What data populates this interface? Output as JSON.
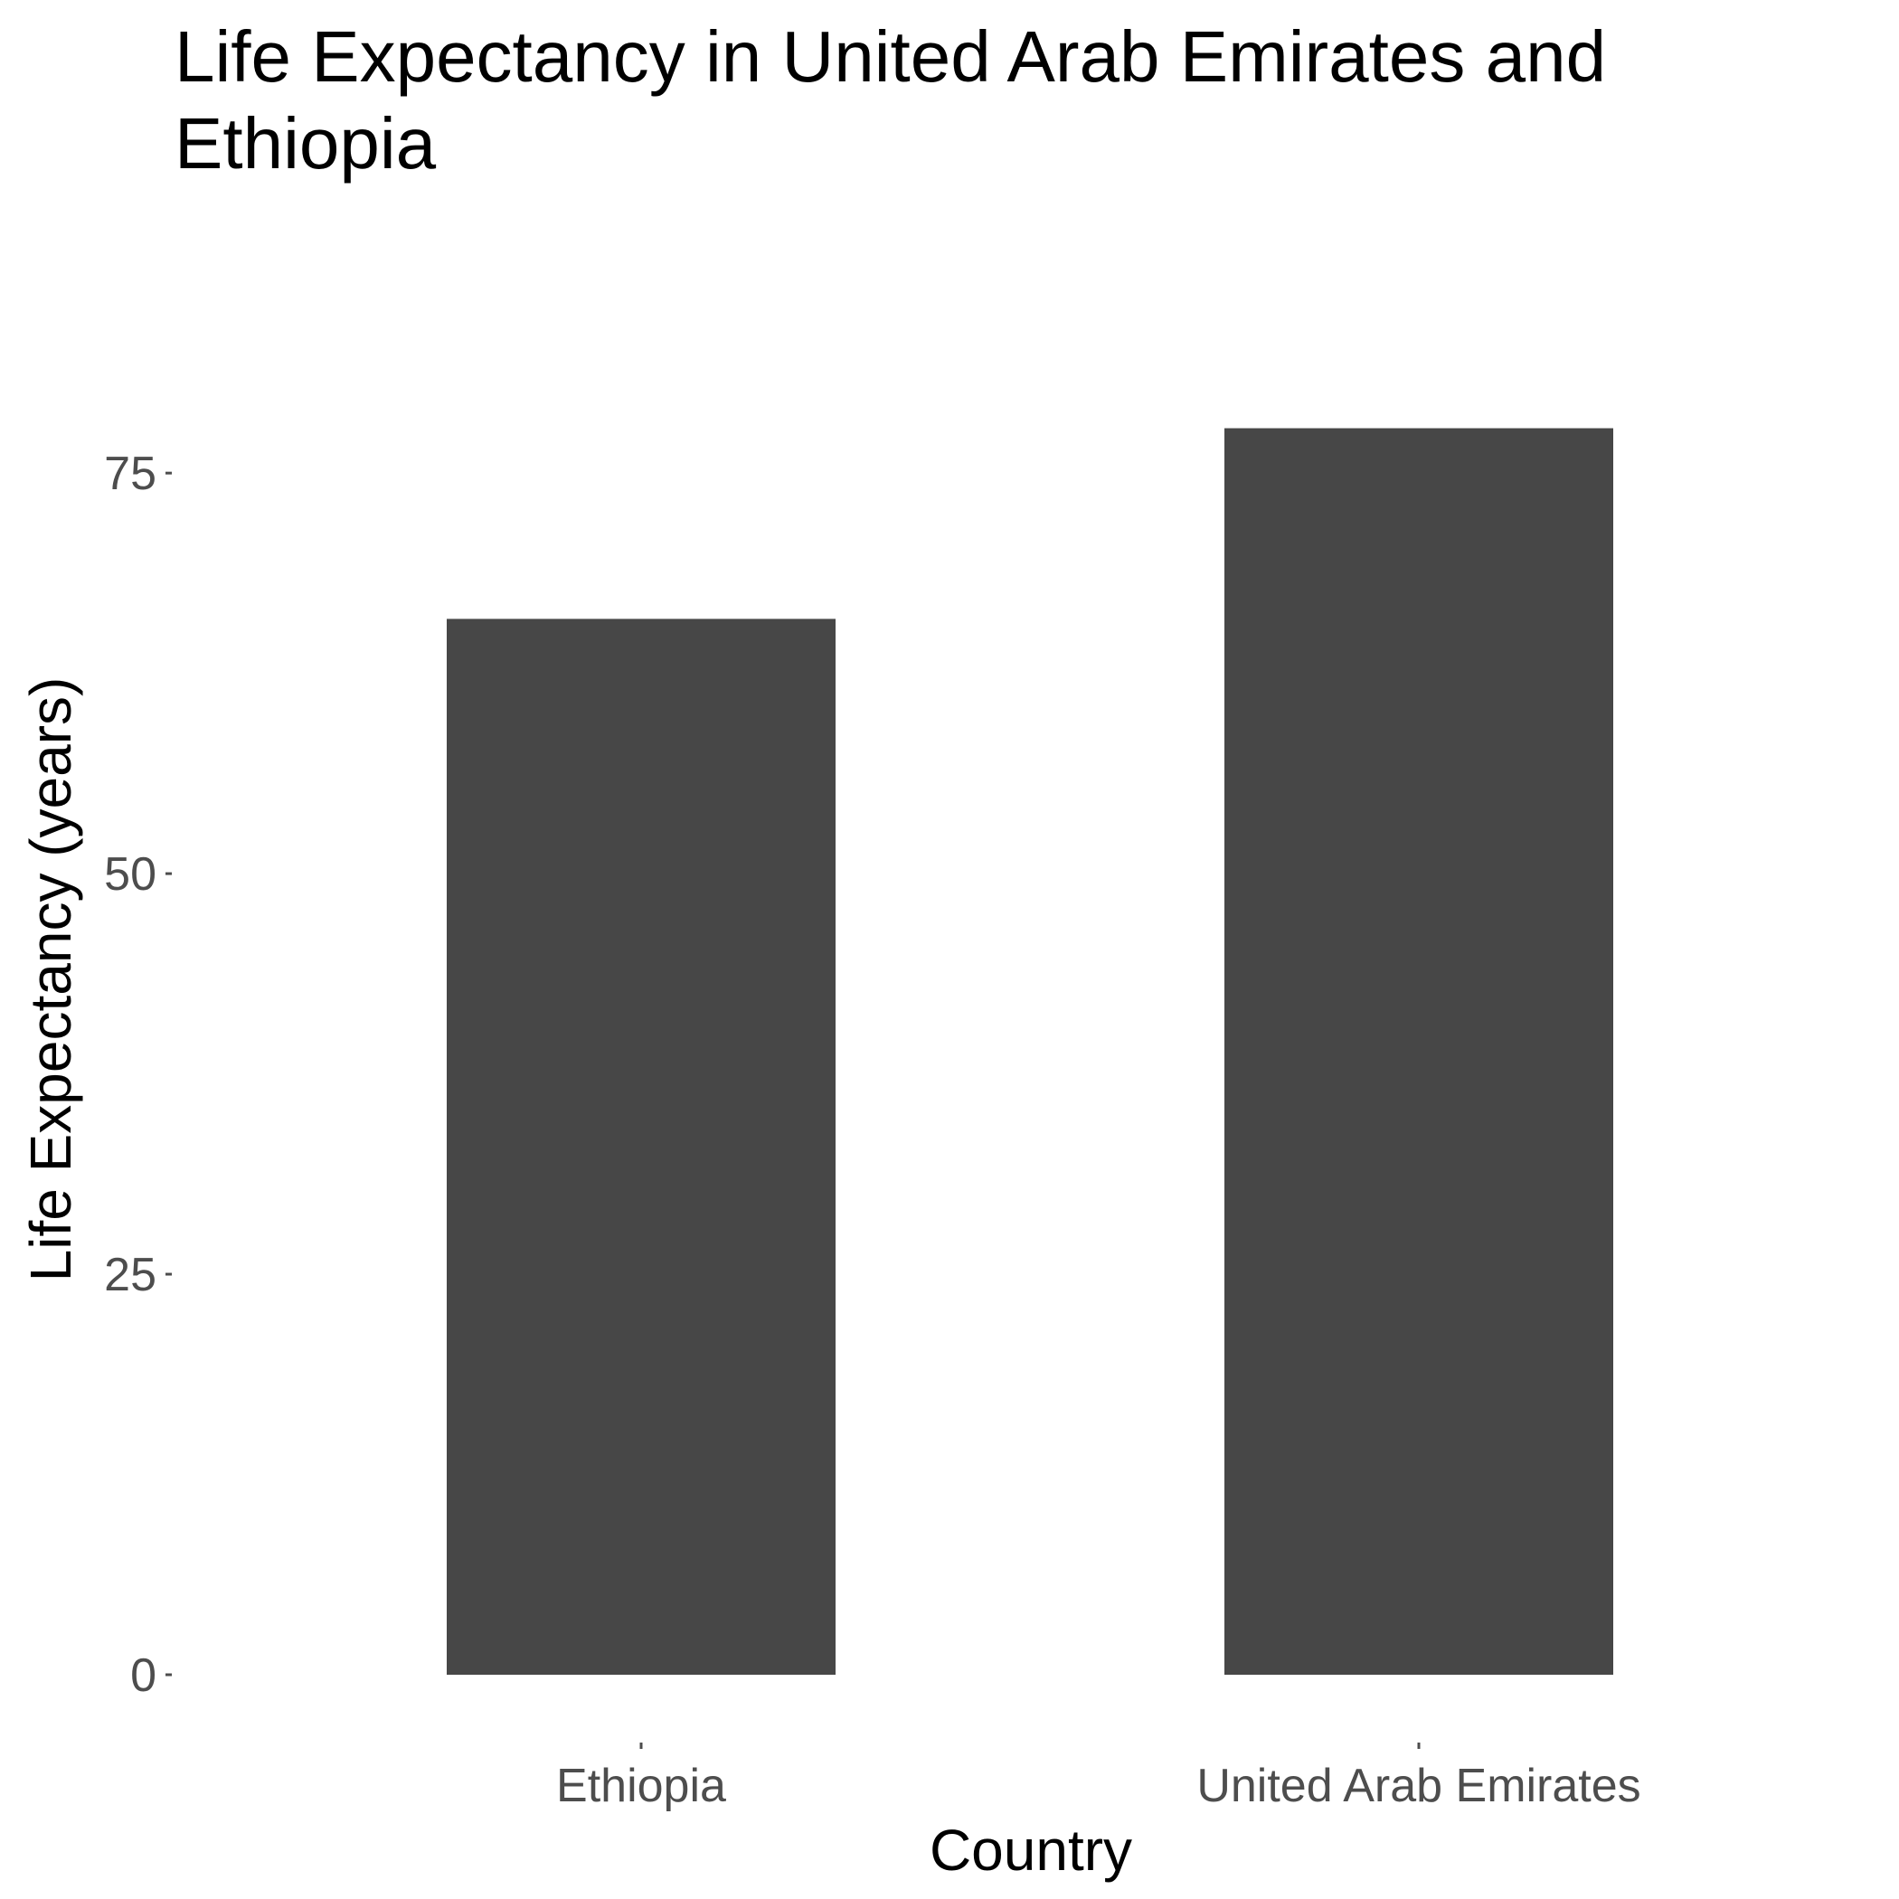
{
  "chart_data": {
    "type": "bar",
    "title_lines": [
      "Life Expectancy in United Arab Emirates and",
      "Ethiopia"
    ],
    "xlabel": "Country",
    "ylabel": "Life Expectancy (years)",
    "categories": [
      "Ethiopia",
      "United Arab Emirates"
    ],
    "values": [
      65.9,
      77.8
    ],
    "ylim": [
      0,
      78
    ],
    "yticks": [
      0,
      25,
      50,
      75
    ],
    "grid": false,
    "bar_color": "#474747"
  }
}
